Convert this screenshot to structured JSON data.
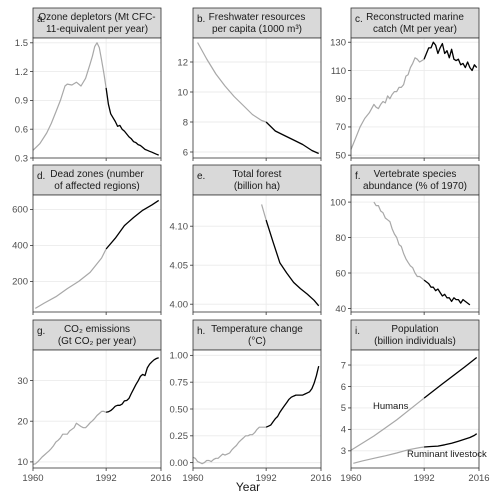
{
  "xlabel": "Year",
  "colors": {
    "before": "#a8a8a8",
    "after": "#000000",
    "grid": "#ebebeb",
    "strip": "#d9d9d9"
  },
  "chart_data": [
    {
      "panel_letter": "a.",
      "title_lines": [
        "Ozone depletors (Mt CFC-",
        "11-equivalent per year)"
      ],
      "type": "line",
      "xlim": [
        1960,
        2016
      ],
      "ylim": [
        0.3,
        1.55
      ],
      "yticks": [
        0.3,
        0.6,
        0.9,
        1.2,
        1.5
      ],
      "ytick_labels": [
        "0.3",
        "0.6",
        "0.9",
        "1.2",
        "1.5"
      ],
      "xticks": [
        1960,
        1992,
        2016
      ],
      "xtick_labels": [],
      "series": [
        {
          "years": [
            1960,
            1963,
            1966,
            1968,
            1970,
            1972,
            1974,
            1975,
            1977,
            1979,
            1981,
            1983,
            1985,
            1986,
            1987,
            1988,
            1989,
            1990,
            1991,
            1992
          ],
          "values": [
            0.38,
            0.45,
            0.56,
            0.66,
            0.78,
            0.9,
            1.05,
            1.07,
            1.06,
            1.09,
            1.05,
            1.13,
            1.28,
            1.36,
            1.46,
            1.5,
            1.45,
            1.32,
            1.18,
            1.03
          ],
          "color": "before"
        },
        {
          "years": [
            1992,
            1993,
            1994,
            1995,
            1996,
            1997,
            1998,
            1999,
            2000,
            2001,
            2002,
            2003,
            2004,
            2005,
            2006,
            2007,
            2008,
            2009,
            2010,
            2011,
            2012,
            2013,
            2014,
            2015
          ],
          "values": [
            1.03,
            0.86,
            0.76,
            0.72,
            0.68,
            0.63,
            0.64,
            0.6,
            0.58,
            0.55,
            0.52,
            0.5,
            0.47,
            0.46,
            0.44,
            0.43,
            0.41,
            0.39,
            0.38,
            0.37,
            0.36,
            0.35,
            0.34,
            0.33
          ],
          "color": "after"
        }
      ]
    },
    {
      "panel_letter": "b.",
      "title_lines": [
        "Freshwater resources",
        "per capita (1000 m³)"
      ],
      "type": "line",
      "xlim": [
        1960,
        2016
      ],
      "ylim": [
        5.6,
        13.6
      ],
      "yticks": [
        6,
        8,
        10,
        12
      ],
      "ytick_labels": [
        "6",
        "8",
        "10",
        "12"
      ],
      "xticks": [
        1960,
        1992,
        2016
      ],
      "xtick_labels": [],
      "series": [
        {
          "years": [
            1962,
            1966,
            1970,
            1974,
            1978,
            1982,
            1986,
            1990,
            1992
          ],
          "values": [
            13.3,
            12.2,
            11.2,
            10.4,
            9.7,
            9.1,
            8.5,
            8.1,
            8.0
          ],
          "color": "before"
        },
        {
          "years": [
            1992,
            1996,
            2000,
            2004,
            2008,
            2012,
            2015
          ],
          "values": [
            8.0,
            7.4,
            7.1,
            6.8,
            6.5,
            6.1,
            5.9
          ],
          "color": "after"
        }
      ]
    },
    {
      "panel_letter": "c.",
      "title_lines": [
        "Reconstructed marine",
        "catch (Mt per year)"
      ],
      "type": "line",
      "xlim": [
        1960,
        2016
      ],
      "ylim": [
        48,
        133
      ],
      "yticks": [
        50,
        70,
        90,
        110,
        130
      ],
      "ytick_labels": [
        "50",
        "70",
        "90",
        "110",
        "130"
      ],
      "xticks": [
        1960,
        1992,
        2016
      ],
      "xtick_labels": [],
      "series": [
        {
          "years": [
            1960,
            1962,
            1964,
            1966,
            1968,
            1970,
            1971,
            1972,
            1973,
            1974,
            1975,
            1976,
            1977,
            1978,
            1979,
            1980,
            1981,
            1982,
            1983,
            1984,
            1985,
            1986,
            1987,
            1988,
            1989,
            1990,
            1991,
            1992
          ],
          "values": [
            54,
            62,
            70,
            76,
            80,
            86,
            84,
            83,
            86,
            88,
            87,
            92,
            90,
            93,
            95,
            95,
            98,
            98,
            100,
            106,
            107,
            112,
            115,
            119,
            118,
            116,
            117,
            118
          ],
          "color": "before"
        },
        {
          "years": [
            1992,
            1993,
            1994,
            1995,
            1996,
            1997,
            1998,
            1999,
            2000,
            2001,
            2002,
            2003,
            2004,
            2005,
            2006,
            2007,
            2008,
            2009,
            2010,
            2011,
            2012,
            2013,
            2014,
            2015
          ],
          "values": [
            118,
            122,
            126,
            126,
            130,
            128,
            122,
            126,
            129,
            122,
            124,
            119,
            125,
            118,
            117,
            118,
            114,
            115,
            112,
            116,
            112,
            110,
            114,
            112
          ],
          "color": "after"
        }
      ]
    },
    {
      "panel_letter": "d.",
      "title_lines": [
        "Dead zones (number",
        "of affected regions)"
      ],
      "type": "line",
      "xlim": [
        1960,
        2016
      ],
      "ylim": [
        30,
        680
      ],
      "yticks": [
        200,
        400,
        600
      ],
      "ytick_labels": [
        "200",
        "400",
        "600"
      ],
      "xticks": [
        1960,
        1992,
        2016
      ],
      "xtick_labels": [],
      "series": [
        {
          "years": [
            1961,
            1965,
            1970,
            1975,
            1980,
            1985,
            1990,
            1992
          ],
          "values": [
            50,
            80,
            115,
            160,
            200,
            250,
            330,
            380
          ],
          "color": "before"
        },
        {
          "years": [
            1992,
            1996,
            2000,
            2004,
            2008,
            2012,
            2015
          ],
          "values": [
            380,
            440,
            510,
            555,
            595,
            625,
            650
          ],
          "color": "after"
        }
      ]
    },
    {
      "panel_letter": "e.",
      "title_lines": [
        "Total forest",
        "(billion ha)"
      ],
      "type": "line",
      "xlim": [
        1960,
        2016
      ],
      "ylim": [
        3.99,
        4.14
      ],
      "yticks": [
        4.0,
        4.05,
        4.1
      ],
      "ytick_labels": [
        "4.00",
        "4.05",
        "4.10"
      ],
      "xticks": [
        1960,
        1992,
        2016
      ],
      "xtick_labels": [],
      "series": [
        {
          "years": [
            1990,
            1992
          ],
          "values": [
            4.128,
            4.108
          ],
          "color": "before"
        },
        {
          "years": [
            1992,
            1995,
            1998,
            2001,
            2004,
            2007,
            2010,
            2013,
            2015
          ],
          "values": [
            4.108,
            4.08,
            4.053,
            4.04,
            4.028,
            4.02,
            4.013,
            4.005,
            3.998
          ],
          "color": "after"
        }
      ]
    },
    {
      "panel_letter": "f.",
      "title_lines": [
        "Vertebrate species",
        "abundance (% of 1970)"
      ],
      "type": "line",
      "xlim": [
        1960,
        2016
      ],
      "ylim": [
        38,
        104
      ],
      "yticks": [
        40,
        60,
        80,
        100
      ],
      "ytick_labels": [
        "40",
        "60",
        "80",
        "100"
      ],
      "xticks": [
        1960,
        1992,
        2016
      ],
      "xtick_labels": [],
      "series": [
        {
          "years": [
            1970,
            1971,
            1972,
            1973,
            1974,
            1975,
            1976,
            1977,
            1978,
            1979,
            1980,
            1981,
            1982,
            1983,
            1984,
            1985,
            1986,
            1987,
            1988,
            1989,
            1990,
            1991,
            1992
          ],
          "values": [
            100,
            98,
            98,
            95,
            94,
            91,
            90,
            89,
            85,
            82,
            80,
            76,
            75,
            71,
            68,
            66,
            64,
            63,
            60,
            58,
            58,
            57,
            56
          ],
          "color": "before"
        },
        {
          "years": [
            1992,
            1993,
            1994,
            1995,
            1996,
            1997,
            1998,
            1999,
            2000,
            2001,
            2002,
            2003,
            2004,
            2005,
            2006,
            2007,
            2008,
            2009,
            2010,
            2011,
            2012
          ],
          "values": [
            56,
            55,
            54,
            52,
            52,
            50,
            51,
            49,
            47,
            48,
            46,
            46,
            44,
            46,
            45,
            45,
            43,
            45,
            44,
            43,
            42
          ],
          "color": "after"
        }
      ]
    },
    {
      "panel_letter": "g.",
      "title_lines": [
        "CO₂ emissions",
        "(Gt CO₂ per year)"
      ],
      "type": "line",
      "xlim": [
        1960,
        2016
      ],
      "ylim": [
        8.5,
        37.5
      ],
      "yticks": [
        10,
        20,
        30
      ],
      "ytick_labels": [
        "10",
        "20",
        "30"
      ],
      "xticks": [
        1960,
        1992,
        2016
      ],
      "xtick_labels": [
        "1960",
        "1992",
        "2016"
      ],
      "series": [
        {
          "years": [
            1960,
            1961,
            1962,
            1963,
            1964,
            1965,
            1966,
            1967,
            1968,
            1969,
            1970,
            1971,
            1972,
            1973,
            1974,
            1975,
            1976,
            1977,
            1978,
            1979,
            1980,
            1981,
            1982,
            1983,
            1984,
            1985,
            1986,
            1987,
            1988,
            1989,
            1990,
            1991,
            1992
          ],
          "values": [
            9.4,
            9.5,
            10.0,
            10.6,
            11.2,
            11.7,
            12.2,
            12.7,
            13.3,
            14.0,
            14.9,
            15.3,
            15.9,
            16.8,
            16.8,
            16.8,
            17.6,
            18.0,
            18.4,
            19.5,
            19.1,
            18.7,
            18.4,
            18.4,
            19.0,
            19.6,
            20.1,
            20.7,
            21.4,
            21.9,
            22.4,
            22.4,
            22.2
          ],
          "color": "before"
        },
        {
          "years": [
            1992,
            1993,
            1994,
            1995,
            1996,
            1997,
            1998,
            1999,
            2000,
            2001,
            2002,
            2003,
            2004,
            2005,
            2006,
            2007,
            2008,
            2009,
            2010,
            2011,
            2012,
            2013,
            2014,
            2015
          ],
          "values": [
            22.2,
            22.3,
            22.6,
            23.1,
            23.7,
            23.9,
            23.9,
            24.2,
            25.0,
            25.1,
            25.6,
            26.8,
            27.9,
            29.0,
            29.9,
            31.0,
            31.5,
            31.2,
            33.1,
            34.0,
            34.6,
            35.1,
            35.4,
            35.6
          ],
          "color": "after"
        }
      ]
    },
    {
      "panel_letter": "h.",
      "title_lines": [
        "Temperature change",
        "(°C)"
      ],
      "type": "line",
      "xlim": [
        1960,
        2016
      ],
      "ylim": [
        -0.05,
        1.05
      ],
      "yticks": [
        0,
        0.25,
        0.5,
        0.75,
        1.0
      ],
      "ytick_labels": [
        "0.00",
        "0.25",
        "0.50",
        "0.75",
        "1.00"
      ],
      "xticks": [
        1960,
        1992,
        2016
      ],
      "xtick_labels": [
        "1960",
        "1992",
        "2016"
      ],
      "series": [
        {
          "years": [
            1960,
            1961,
            1962,
            1963,
            1964,
            1965,
            1966,
            1967,
            1968,
            1969,
            1970,
            1971,
            1972,
            1973,
            1974,
            1975,
            1976,
            1977,
            1978,
            1979,
            1980,
            1981,
            1982,
            1983,
            1984,
            1985,
            1986,
            1987,
            1988,
            1989,
            1990,
            1991,
            1992
          ],
          "values": [
            0.05,
            0.04,
            0.01,
            0.0,
            -0.01,
            0.0,
            0.02,
            0.02,
            0.01,
            0.03,
            0.04,
            0.04,
            0.06,
            0.08,
            0.07,
            0.08,
            0.09,
            0.12,
            0.14,
            0.16,
            0.19,
            0.21,
            0.23,
            0.25,
            0.25,
            0.26,
            0.26,
            0.28,
            0.31,
            0.33,
            0.33,
            0.33,
            0.33
          ],
          "color": "before"
        },
        {
          "years": [
            1992,
            1993,
            1994,
            1995,
            1996,
            1997,
            1998,
            1999,
            2000,
            2001,
            2002,
            2003,
            2004,
            2005,
            2006,
            2007,
            2008,
            2009,
            2010,
            2011,
            2012,
            2013,
            2014,
            2015
          ],
          "values": [
            0.33,
            0.34,
            0.35,
            0.38,
            0.41,
            0.43,
            0.47,
            0.5,
            0.53,
            0.56,
            0.59,
            0.61,
            0.62,
            0.63,
            0.63,
            0.63,
            0.63,
            0.64,
            0.65,
            0.66,
            0.69,
            0.74,
            0.81,
            0.9
          ],
          "color": "after"
        }
      ]
    },
    {
      "panel_letter": "i.",
      "title_lines": [
        "Population",
        "(billion individuals)"
      ],
      "type": "line",
      "xlim": [
        1960,
        2016
      ],
      "ylim": [
        2.2,
        7.7
      ],
      "yticks": [
        3,
        4,
        5,
        6,
        7
      ],
      "ytick_labels": [
        "3",
        "4",
        "5",
        "6",
        "7"
      ],
      "xticks": [
        1960,
        1992,
        2016
      ],
      "xtick_labels": [
        "1960",
        "1992",
        "2016"
      ],
      "annotations": [
        "Humans",
        "Ruminant livestock"
      ],
      "series": [
        {
          "years": [
            1960,
            1970,
            1980,
            1990,
            1992
          ],
          "values": [
            3.03,
            3.69,
            4.44,
            5.29,
            5.46
          ],
          "color": "before"
        },
        {
          "years": [
            1992,
            2000,
            2010,
            2015
          ],
          "values": [
            5.46,
            6.12,
            6.93,
            7.35
          ],
          "color": "after"
        },
        {
          "years": [
            1961,
            1965,
            1970,
            1975,
            1980,
            1985,
            1990,
            1992
          ],
          "values": [
            2.42,
            2.53,
            2.65,
            2.77,
            2.9,
            3.05,
            3.15,
            3.18
          ],
          "color": "before"
        },
        {
          "years": [
            1992,
            1995,
            1998,
            2001,
            2004,
            2007,
            2010,
            2012,
            2014,
            2015
          ],
          "values": [
            3.18,
            3.2,
            3.22,
            3.28,
            3.35,
            3.45,
            3.55,
            3.62,
            3.72,
            3.8
          ],
          "color": "after"
        }
      ]
    }
  ]
}
